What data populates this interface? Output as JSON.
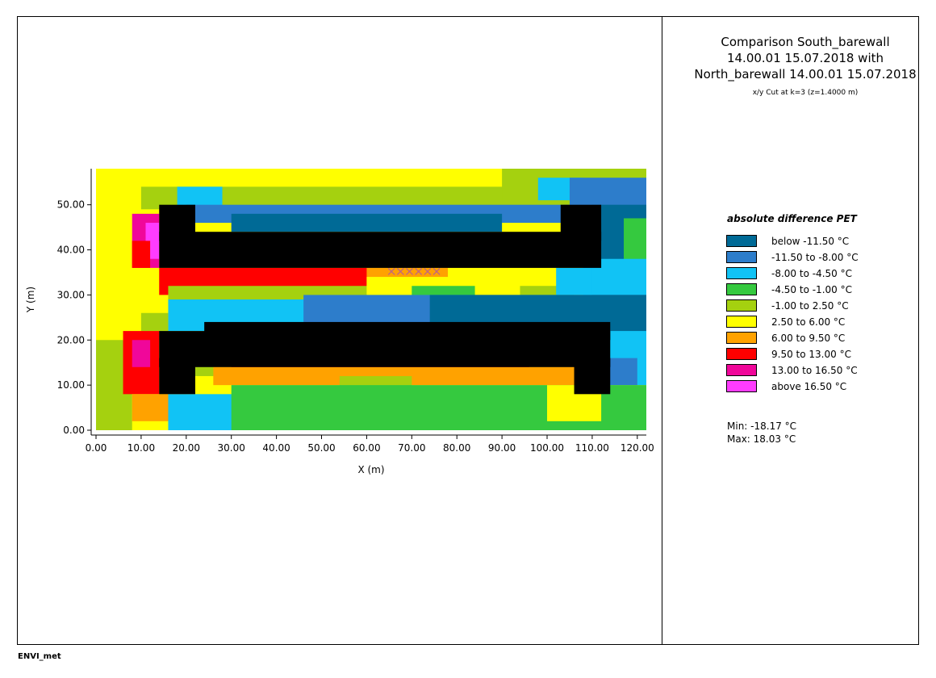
{
  "title": "Comparison South_barewall 14.00.01 15.07.2018 with North_barewall 14.00.01 15.07.2018",
  "subtitle": "x/y Cut at k=3 (z=1.4000 m)",
  "footer": "ENVI_met",
  "legend": {
    "title": "absolute difference PET",
    "items": [
      {
        "label": "below -11.50 °C",
        "color": "#006a96"
      },
      {
        "label": "-11.50 to -8.00 °C",
        "color": "#2d7dcb"
      },
      {
        "label": "-8.00 to -4.50 °C",
        "color": "#11c3f5"
      },
      {
        "label": "-4.50 to -1.00 °C",
        "color": "#35c93f"
      },
      {
        "label": "-1.00 to 2.50 °C",
        "color": "#a5d10f"
      },
      {
        "label": "2.50 to 6.00 °C",
        "color": "#ffff00"
      },
      {
        "label": "6.00 to 9.50 °C",
        "color": "#ffa200"
      },
      {
        "label": "9.50 to 13.00 °C",
        "color": "#ff0000"
      },
      {
        "label": "13.00 to 16.50 °C",
        "color": "#f0079a"
      },
      {
        "label": "above 16.50 °C",
        "color": "#ff3cff"
      }
    ]
  },
  "stats": {
    "min": "Min: -18.17 °C",
    "max": "Max: 18.03 °C"
  },
  "chart_data": {
    "type": "heatmap",
    "xlabel": "X (m)",
    "ylabel": "Y (m)",
    "xlim": [
      0,
      122
    ],
    "ylim": [
      0,
      58
    ],
    "xticks": [
      "0.00",
      "10.00",
      "20.00",
      "30.00",
      "40.00",
      "50.00",
      "60.00",
      "70.00",
      "80.00",
      "90.00",
      "100.00",
      "110.00",
      "120.00"
    ],
    "yticks": [
      "0.00",
      "10.00",
      "20.00",
      "30.00",
      "40.00",
      "50.00"
    ],
    "building_color": "#000000",
    "background_regions": [
      {
        "x0": 0,
        "x1": 122,
        "y0": 0,
        "y1": 58,
        "value": "2.50 to 6.00 °C"
      }
    ],
    "regions": [
      {
        "x0": 10,
        "x1": 106,
        "y0": 52,
        "y1": 58,
        "value": "2.50 to 6.00 °C"
      },
      {
        "x0": 10,
        "x1": 96,
        "y0": 49,
        "y1": 54,
        "value": "-1.00 to 2.50 °C"
      },
      {
        "x0": 18,
        "x1": 28,
        "y0": 46,
        "y1": 54,
        "value": "-8.00 to -4.50 °C"
      },
      {
        "x0": 90,
        "x1": 122,
        "y0": 46,
        "y1": 58,
        "value": "-1.00 to 2.50 °C"
      },
      {
        "x0": 98,
        "x1": 108,
        "y0": 51,
        "y1": 56,
        "value": "-8.00 to -4.50 °C"
      },
      {
        "x0": 105,
        "x1": 122,
        "y0": 44,
        "y1": 56,
        "value": "-11.50 to -8.00 °C"
      },
      {
        "x0": 110,
        "x1": 122,
        "y0": 30,
        "y1": 50,
        "value": "below -11.50 °C"
      },
      {
        "x0": 117,
        "x1": 122,
        "y0": 37,
        "y1": 47,
        "value": "-4.50 to -1.00 °C"
      },
      {
        "x0": 108,
        "x1": 122,
        "y0": 30,
        "y1": 38,
        "value": "-8.00 to -4.50 °C"
      },
      {
        "x0": 20,
        "x1": 112,
        "y0": 46,
        "y1": 50,
        "value": "-11.50 to -8.00 °C"
      },
      {
        "x0": 30,
        "x1": 90,
        "y0": 44,
        "y1": 48,
        "value": "below -11.50 °C"
      },
      {
        "x0": 8,
        "x1": 14,
        "y0": 36,
        "y1": 48,
        "value": "13.00 to 16.50 °C"
      },
      {
        "x0": 11,
        "x1": 14,
        "y0": 38,
        "y1": 46,
        "value": "above 16.50 °C"
      },
      {
        "x0": 8,
        "x1": 12,
        "y0": 36,
        "y1": 42,
        "value": "9.50 to 13.00 °C"
      },
      {
        "x0": 14,
        "x1": 86,
        "y0": 30,
        "y1": 36,
        "value": "9.50 to 13.00 °C"
      },
      {
        "x0": 60,
        "x1": 100,
        "y0": 30,
        "y1": 36,
        "value": "6.00 to 9.50 °C"
      },
      {
        "x0": 78,
        "x1": 106,
        "y0": 30,
        "y1": 36,
        "value": "2.50 to 6.00 °C"
      },
      {
        "x0": 94,
        "x1": 106,
        "y0": 28,
        "y1": 32,
        "value": "-1.00 to 2.50 °C"
      },
      {
        "x0": 102,
        "x1": 110,
        "y0": 30,
        "y1": 36,
        "value": "-8.00 to -4.50 °C"
      },
      {
        "x0": 16,
        "x1": 80,
        "y0": 28,
        "y1": 32,
        "value": "-1.00 to 2.50 °C"
      },
      {
        "x0": 60,
        "x1": 80,
        "y0": 30,
        "y1": 34,
        "value": "2.50 to 6.00 °C"
      },
      {
        "x0": 70,
        "x1": 84,
        "y0": 28,
        "y1": 32,
        "value": "-4.50 to -1.00 °C"
      },
      {
        "x0": 16,
        "x1": 110,
        "y0": 22,
        "y1": 29,
        "value": "-8.00 to -4.50 °C"
      },
      {
        "x0": 46,
        "x1": 122,
        "y0": 22,
        "y1": 30,
        "value": "-11.50 to -8.00 °C"
      },
      {
        "x0": 74,
        "x1": 122,
        "y0": 12,
        "y1": 30,
        "value": "below -11.50 °C"
      },
      {
        "x0": 112,
        "x1": 122,
        "y0": 10,
        "y1": 22,
        "value": "-8.00 to -4.50 °C"
      },
      {
        "x0": 110,
        "x1": 120,
        "y0": 10,
        "y1": 16,
        "value": "-11.50 to -8.00 °C"
      },
      {
        "x0": 10,
        "x1": 16,
        "y0": 20,
        "y1": 26,
        "value": "-1.00 to 2.50 °C"
      },
      {
        "x0": 0,
        "x1": 8,
        "y0": 0,
        "y1": 20,
        "value": "-1.00 to 2.50 °C"
      },
      {
        "x0": 6,
        "x1": 14,
        "y0": 8,
        "y1": 22,
        "value": "9.50 to 13.00 °C"
      },
      {
        "x0": 8,
        "x1": 12,
        "y0": 14,
        "y1": 20,
        "value": "13.00 to 16.50 °C"
      },
      {
        "x0": 8,
        "x1": 20,
        "y0": 2,
        "y1": 8,
        "value": "6.00 to 9.50 °C"
      },
      {
        "x0": 16,
        "x1": 36,
        "y0": 0,
        "y1": 8,
        "value": "-8.00 to -4.50 °C"
      },
      {
        "x0": 22,
        "x1": 30,
        "y0": 12,
        "y1": 16,
        "value": "-1.00 to 2.50 °C"
      },
      {
        "x0": 26,
        "x1": 108,
        "y0": 10,
        "y1": 16,
        "value": "6.00 to 9.50 °C"
      },
      {
        "x0": 30,
        "x1": 96,
        "y0": 14,
        "y1": 16,
        "value": "9.50 to 13.00 °C"
      },
      {
        "x0": 54,
        "x1": 70,
        "y0": 8,
        "y1": 12,
        "value": "-1.00 to 2.50 °C"
      },
      {
        "x0": 30,
        "x1": 122,
        "y0": 0,
        "y1": 10,
        "value": "-4.50 to -1.00 °C"
      },
      {
        "x0": 100,
        "x1": 112,
        "y0": 2,
        "y1": 10,
        "value": "2.50 to 6.00 °C"
      }
    ],
    "buildings": [
      {
        "x0": 14,
        "x1": 112,
        "y0": 36,
        "y1": 44
      },
      {
        "x0": 14,
        "x1": 22,
        "y0": 42,
        "y1": 50
      },
      {
        "x0": 103,
        "x1": 112,
        "y0": 42,
        "y1": 50
      },
      {
        "x0": 14,
        "x1": 114,
        "y0": 14,
        "y1": 22
      },
      {
        "x0": 24,
        "x1": 114,
        "y0": 20,
        "y1": 24
      },
      {
        "x0": 14,
        "x1": 22,
        "y0": 8,
        "y1": 16
      },
      {
        "x0": 106,
        "x1": 114,
        "y0": 8,
        "y1": 16
      }
    ],
    "markers": {
      "type": "x",
      "color": "#b05aa0",
      "y": 35.2,
      "x": [
        65.5,
        67.5,
        69.5,
        71.5,
        73.5,
        75.5
      ]
    }
  }
}
